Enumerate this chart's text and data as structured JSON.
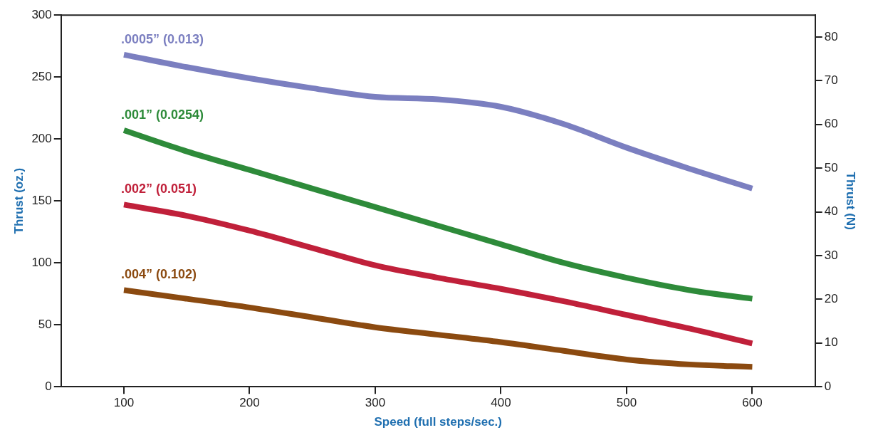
{
  "chart_data": {
    "type": "line",
    "xlabel": "Speed (full steps/sec.)",
    "ylabel": "Thrust (oz.)",
    "y2label": "Thrust (N)",
    "x": [
      100,
      150,
      200,
      250,
      300,
      350,
      400,
      450,
      500,
      550,
      600
    ],
    "series": [
      {
        "name": ".0005” (0.013)",
        "color": "#7b7fc0",
        "values": [
          268,
          258,
          249,
          241,
          234,
          232,
          226,
          212,
          193,
          176,
          160
        ]
      },
      {
        "name": ".001” (0.0254)",
        "color": "#2e8b3a",
        "values": [
          207,
          190,
          175,
          160,
          145,
          130,
          115,
          100,
          88,
          78,
          71
        ]
      },
      {
        "name": ".002” (0.051)",
        "color": "#c0203a",
        "values": [
          147,
          138,
          126,
          112,
          98,
          88,
          79,
          69,
          58,
          47,
          35
        ]
      },
      {
        "name": ".004” (0.102)",
        "color": "#8b4a10",
        "values": [
          78,
          71,
          64,
          56,
          48,
          42,
          36,
          29,
          22,
          18,
          16
        ]
      }
    ],
    "xlim": [
      50,
      650
    ],
    "xticks": [
      100,
      200,
      300,
      400,
      500,
      600
    ],
    "ylim": [
      0,
      300
    ],
    "yticks": [
      0,
      50,
      100,
      150,
      200,
      250,
      300
    ],
    "y2lim": [
      0,
      85
    ],
    "y2ticks": [
      0,
      10,
      20,
      30,
      40,
      50,
      60,
      70,
      80
    ],
    "grid": false,
    "legend": false,
    "marker": "none",
    "line_style": "solid"
  }
}
